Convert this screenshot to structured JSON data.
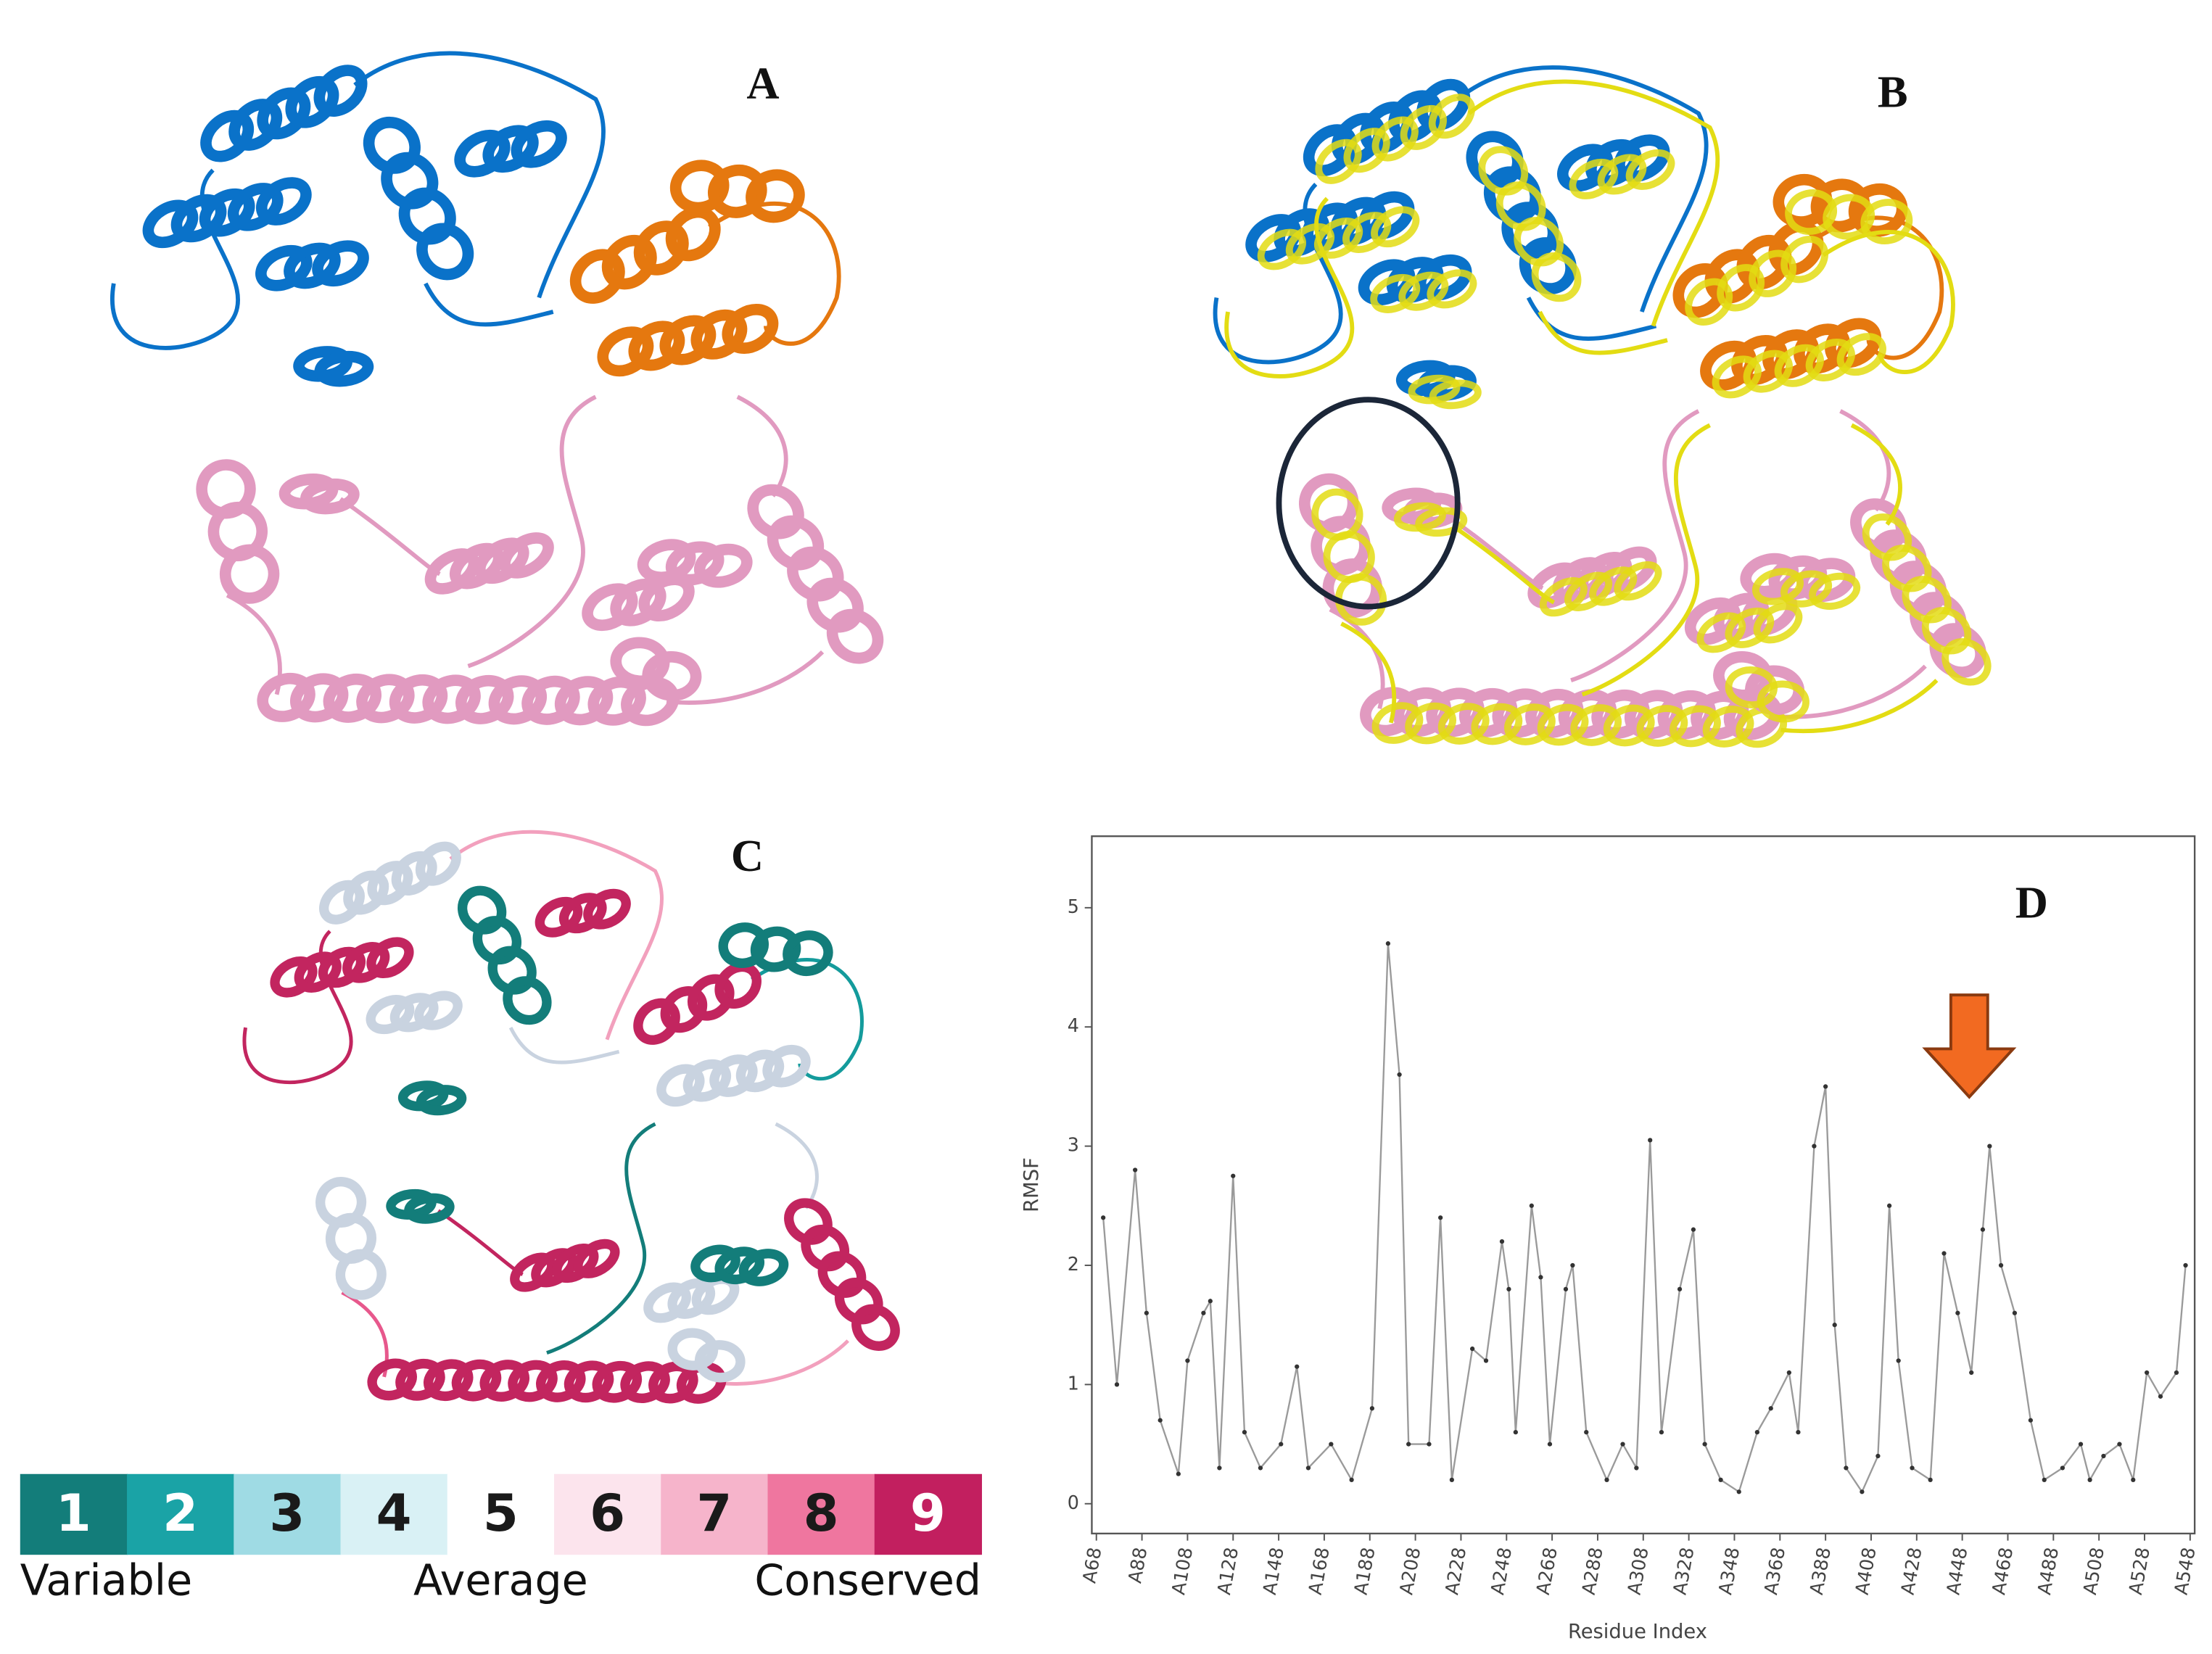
{
  "panels": {
    "a": "A",
    "b": "B",
    "c": "C"
  },
  "colorbar": {
    "cells": [
      {
        "label": "1",
        "color": "#137d7a",
        "text_color": "#ffffff"
      },
      {
        "label": "2",
        "color": "#1aa3a6",
        "text_color": "#ffffff"
      },
      {
        "label": "3",
        "color": "#9fdbe4",
        "text_color": "#1a1a1a"
      },
      {
        "label": "4",
        "color": "#d9f1f5",
        "text_color": "#1a1a1a"
      },
      {
        "label": "5",
        "color": "#ffffff",
        "text_color": "#1a1a1a"
      },
      {
        "label": "6",
        "color": "#fce4ed",
        "text_color": "#1a1a1a"
      },
      {
        "label": "7",
        "color": "#f6b4cb",
        "text_color": "#1a1a1a"
      },
      {
        "label": "8",
        "color": "#ef769f",
        "text_color": "#1a1a1a"
      },
      {
        "label": "9",
        "color": "#c21f5f",
        "text_color": "#ffffff"
      }
    ],
    "labels": [
      "Variable",
      "Average",
      "Conserved"
    ]
  },
  "chart_data": {
    "type": "line",
    "annotation": "D",
    "xlabel": "Residue Index",
    "ylabel": "RMSF",
    "color": "#9a9a9a",
    "marker_color": "#333333",
    "x": [
      71,
      77,
      85,
      90,
      96,
      104,
      108,
      115,
      118,
      122,
      128,
      133,
      140,
      149,
      156,
      161,
      171,
      180,
      189,
      196,
      201,
      205,
      214,
      219,
      224,
      233,
      239,
      246,
      249,
      252,
      259,
      263,
      267,
      274,
      277,
      283,
      292,
      299,
      305,
      311,
      316,
      324,
      330,
      335,
      342,
      350,
      358,
      364,
      372,
      376,
      383,
      388,
      392,
      397,
      404,
      411,
      416,
      420,
      426,
      434,
      440,
      446,
      452,
      457,
      460,
      465,
      471,
      478,
      484,
      492,
      500,
      504,
      510,
      517,
      523,
      529,
      535,
      542,
      546
    ],
    "values": [
      2.4,
      1.0,
      2.8,
      1.6,
      0.7,
      0.25,
      1.2,
      1.6,
      1.7,
      0.3,
      2.75,
      0.6,
      0.3,
      0.5,
      1.15,
      0.3,
      0.5,
      0.2,
      0.8,
      4.7,
      3.6,
      0.5,
      0.5,
      2.4,
      0.2,
      1.3,
      1.2,
      2.2,
      1.8,
      0.6,
      2.5,
      1.9,
      0.5,
      1.8,
      2.0,
      0.6,
      0.2,
      0.5,
      0.3,
      3.05,
      0.6,
      1.8,
      2.3,
      0.5,
      0.2,
      0.1,
      0.6,
      0.8,
      1.1,
      0.6,
      3.0,
      3.5,
      1.5,
      0.3,
      0.1,
      0.4,
      2.5,
      1.2,
      0.3,
      0.2,
      2.1,
      1.6,
      1.1,
      2.3,
      3.0,
      2.0,
      1.6,
      0.7,
      0.2,
      0.3,
      0.5,
      0.2,
      0.4,
      0.5,
      0.2,
      1.1,
      0.9,
      1.1,
      2.0
    ],
    "xlim": [
      66,
      550
    ],
    "ylim": [
      -0.25,
      5.6
    ],
    "yticks": [
      0,
      1,
      2,
      3,
      4,
      5
    ],
    "xticks": [
      {
        "value": 68,
        "label": "A68"
      },
      {
        "value": 88,
        "label": "A88"
      },
      {
        "value": 108,
        "label": "A108"
      },
      {
        "value": 128,
        "label": "A128"
      },
      {
        "value": 148,
        "label": "A148"
      },
      {
        "value": 168,
        "label": "A168"
      },
      {
        "value": 188,
        "label": "A188"
      },
      {
        "value": 208,
        "label": "A208"
      },
      {
        "value": 228,
        "label": "A228"
      },
      {
        "value": 248,
        "label": "A248"
      },
      {
        "value": 268,
        "label": "A268"
      },
      {
        "value": 288,
        "label": "A288"
      },
      {
        "value": 308,
        "label": "A308"
      },
      {
        "value": 328,
        "label": "A328"
      },
      {
        "value": 348,
        "label": "A348"
      },
      {
        "value": 368,
        "label": "A368"
      },
      {
        "value": 388,
        "label": "A388"
      },
      {
        "value": 408,
        "label": "A408"
      },
      {
        "value": 428,
        "label": "A428"
      },
      {
        "value": 448,
        "label": "A448"
      },
      {
        "value": 468,
        "label": "A468"
      },
      {
        "value": 488,
        "label": "A488"
      },
      {
        "value": 508,
        "label": "A508"
      },
      {
        "value": 528,
        "label": "A528"
      },
      {
        "value": 548,
        "label": "A548"
      }
    ]
  }
}
